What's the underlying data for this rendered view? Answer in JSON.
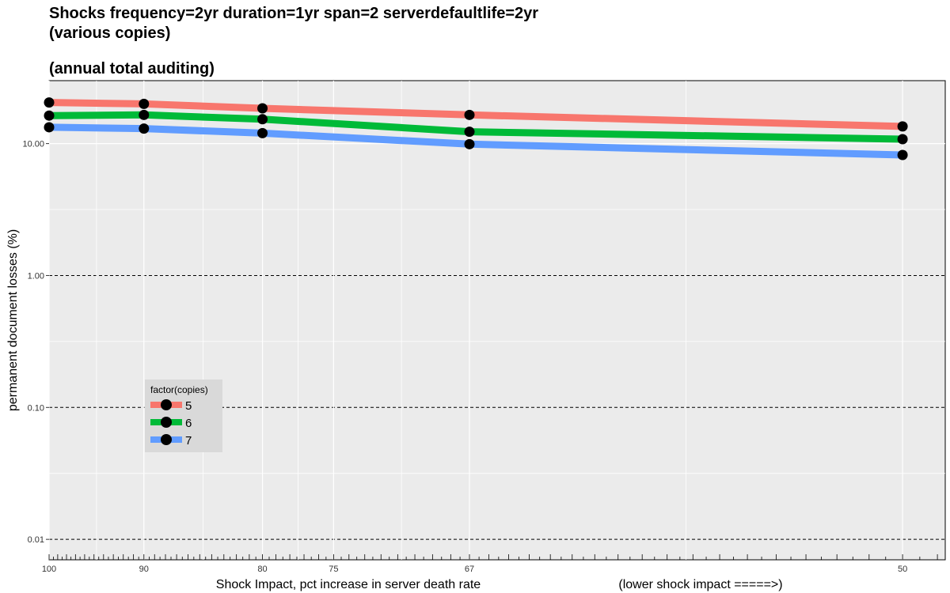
{
  "chart_data": {
    "type": "line",
    "title_lines": [
      "Shocks frequency=2yr duration=1yr span=2 serverdefaultlife=2yr",
      "(various copies)",
      "",
      "(annual total auditing)"
    ],
    "xlabel": "Shock Impact, pct increase in server death rate",
    "xlabel_note": "(lower shock impact =====>)",
    "ylabel": "permanent document losses (%)",
    "y_scale": "log",
    "ylim": [
      0.007,
      30
    ],
    "xlim": [
      1.0,
      2.05
    ],
    "x_reciprocal_axis": true,
    "x_tick_labels": [
      "100",
      "90",
      "80",
      "75",
      "67",
      "50"
    ],
    "x": [
      100,
      90,
      80,
      67,
      50
    ],
    "y_ticks": [
      {
        "value": 0.01,
        "label": "0.01"
      },
      {
        "value": 0.1,
        "label": "0.10"
      },
      {
        "value": 1,
        "label": "1.00"
      },
      {
        "value": 10,
        "label": "10.00"
      }
    ],
    "grid": true,
    "dashed_reference_lines": [
      0.01,
      0.1,
      1
    ],
    "legend": {
      "title": "factor(copies)",
      "position": "bottom-left"
    },
    "series": [
      {
        "name": "5",
        "color": "#f8766d",
        "values": [
          20.5,
          20.0,
          18.5,
          16.5,
          13.5
        ]
      },
      {
        "name": "6",
        "color": "#00ba38",
        "values": [
          16.3,
          16.5,
          15.3,
          12.3,
          10.8
        ]
      },
      {
        "name": "7",
        "color": "#619cff",
        "values": [
          13.3,
          13.0,
          12.0,
          9.9,
          8.2
        ]
      }
    ],
    "marker_color": "#000000",
    "panel_background": "#ebebeb"
  }
}
